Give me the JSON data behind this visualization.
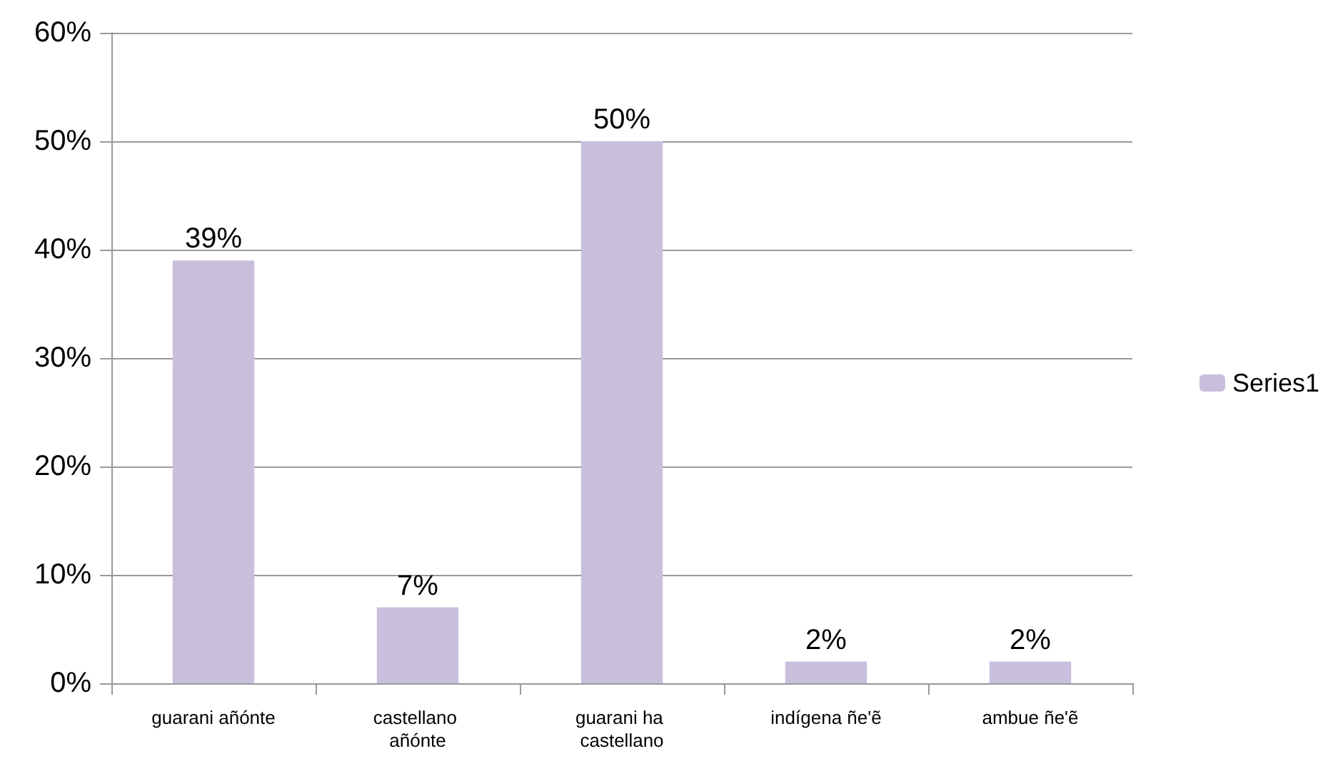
{
  "chart_data": {
    "type": "bar",
    "categories": [
      "guarani añónte",
      "castellano añónte",
      "guarani ha castellano",
      "indígena ñe'ẽ",
      "ambue ñe'ẽ"
    ],
    "series": [
      {
        "name": "Series1",
        "color": "#c9bfdc",
        "values": [
          39,
          7,
          50,
          2,
          2
        ],
        "value_labels": [
          "39%",
          "7%",
          "50%",
          "2%",
          "2%"
        ]
      }
    ],
    "ylim": [
      0,
      60
    ],
    "yticks": [
      {
        "value": 0,
        "label": "0%"
      },
      {
        "value": 10,
        "label": "10%"
      },
      {
        "value": 20,
        "label": "20%"
      },
      {
        "value": 30,
        "label": "30%"
      },
      {
        "value": 40,
        "label": "40%"
      },
      {
        "value": 50,
        "label": "50%"
      },
      {
        "value": 60,
        "label": "60%"
      }
    ],
    "grid": "y",
    "legend": "right"
  }
}
